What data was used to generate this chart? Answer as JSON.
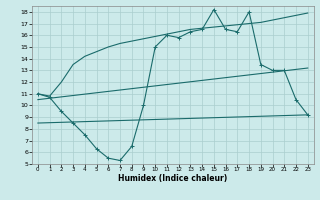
{
  "title": "",
  "xlabel": "Humidex (Indice chaleur)",
  "xlim": [
    -0.5,
    23.5
  ],
  "ylim": [
    5,
    18.5
  ],
  "xticks": [
    0,
    1,
    2,
    3,
    4,
    5,
    6,
    7,
    8,
    9,
    10,
    11,
    12,
    13,
    14,
    15,
    16,
    17,
    18,
    19,
    20,
    21,
    22,
    23
  ],
  "yticks": [
    5,
    6,
    7,
    8,
    9,
    10,
    11,
    12,
    13,
    14,
    15,
    16,
    17,
    18
  ],
  "bg_color": "#cceaea",
  "grid_color": "#aacece",
  "line_color": "#1a6b6b",
  "line1_x": [
    0,
    1,
    2,
    3,
    4,
    5,
    6,
    7,
    8,
    9,
    10,
    11,
    12,
    13,
    14,
    15,
    16,
    17,
    18,
    19,
    20,
    21,
    22,
    23
  ],
  "line1_y": [
    11.0,
    10.7,
    9.5,
    8.5,
    7.5,
    6.3,
    5.5,
    5.3,
    6.5,
    10.0,
    15.0,
    16.0,
    15.8,
    16.3,
    16.5,
    18.2,
    16.5,
    16.3,
    18.0,
    13.5,
    13.0,
    13.0,
    10.5,
    9.2
  ],
  "line2_x": [
    0,
    1,
    2,
    3,
    4,
    5,
    6,
    7,
    8,
    9,
    10,
    11,
    12,
    13,
    14,
    15,
    16,
    17,
    18,
    19,
    20,
    21,
    22,
    23
  ],
  "line2_y": [
    11.0,
    10.8,
    12.0,
    13.5,
    14.2,
    14.6,
    15.0,
    15.3,
    15.5,
    15.7,
    15.9,
    16.1,
    16.3,
    16.5,
    16.6,
    16.7,
    16.8,
    16.9,
    17.0,
    17.1,
    17.3,
    17.5,
    17.7,
    17.9
  ],
  "line3_x": [
    0,
    23
  ],
  "line3_y": [
    10.5,
    13.2
  ],
  "line4_x": [
    0,
    23
  ],
  "line4_y": [
    8.5,
    9.2
  ]
}
